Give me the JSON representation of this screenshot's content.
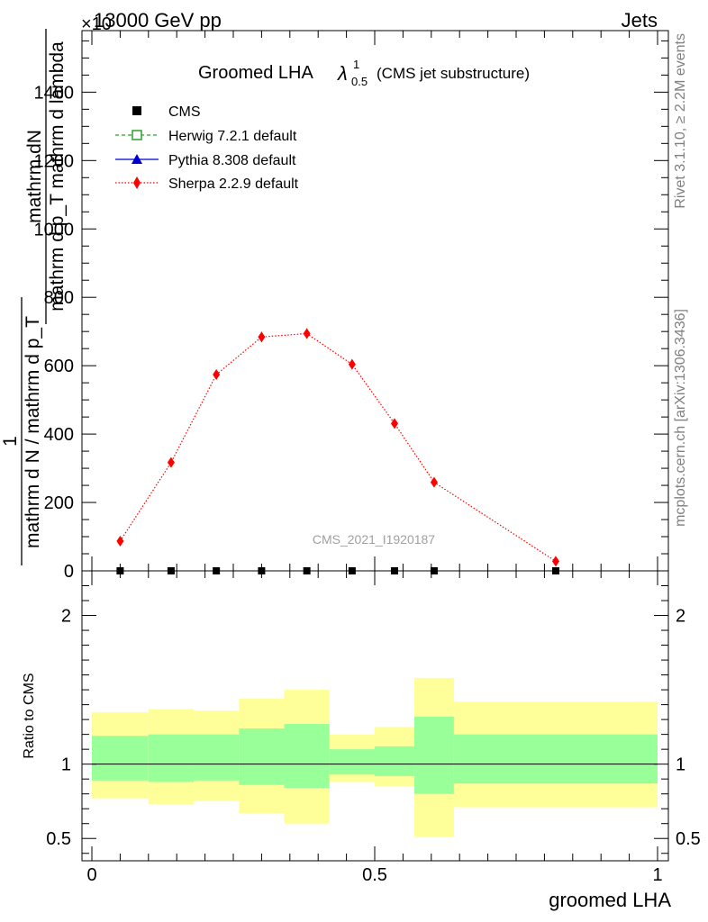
{
  "header": {
    "left": "13000 GeV pp",
    "right": "Jets",
    "multiplier": "×10"
  },
  "side": {
    "rivet": "Rivet 3.1.10, ≥ 2.2M events",
    "mcplots": "mcplots.cern.ch [arXiv:1306.3436]"
  },
  "watermark": "CMS_2021_I1920187",
  "chart_data": [
    {
      "type": "line",
      "title_main": "Groomed LHA",
      "title_symbol": "λ",
      "title_sup": "1",
      "title_sub": "0.5",
      "title_tail": "(CMS jet substructure)",
      "ylabel_numerator": "mathrm dN",
      "ylabel_denominator": "mathrm d p_T mathrm d lambda",
      "ylabel_prefix_num": "1",
      "ylabel_prefix_den": "mathrm d N / mathrm d p_T",
      "ylim": [
        0,
        1580
      ],
      "yticks": [
        0,
        200,
        400,
        600,
        800,
        1000,
        1200,
        1400
      ],
      "xlim": [
        0,
        1
      ],
      "legend_position": "top-left",
      "legend": [
        {
          "label": "CMS",
          "color": "#000000",
          "marker": "square-filled",
          "line": "none"
        },
        {
          "label": "Herwig 7.2.1 default",
          "color": "#2ca02c",
          "marker": "square-open",
          "line": "dashed"
        },
        {
          "label": "Pythia 8.308 default",
          "color": "#0000cc",
          "marker": "triangle",
          "line": "solid"
        },
        {
          "label": "Sherpa 2.2.9 default",
          "color": "#ff0000",
          "marker": "diamond",
          "line": "dotted"
        }
      ],
      "series": [
        {
          "name": "Sherpa 2.2.9 default",
          "color": "#ff0000",
          "x": [
            0.05,
            0.14,
            0.22,
            0.3,
            0.38,
            0.46,
            0.535,
            0.605,
            0.82
          ],
          "y": [
            87,
            317,
            574,
            684,
            694,
            604,
            431,
            259,
            28
          ],
          "err": [
            8,
            10,
            14,
            15,
            15,
            14,
            12,
            9,
            5
          ]
        },
        {
          "name": "CMS",
          "color": "#000000",
          "x": [
            0.05,
            0.14,
            0.22,
            0.3,
            0.38,
            0.46,
            0.535,
            0.605,
            0.82
          ],
          "y": [
            0,
            0,
            0,
            0,
            0,
            0,
            0,
            0,
            0
          ]
        }
      ]
    },
    {
      "type": "area",
      "ylabel": "Ratio to CMS",
      "xlabel": "groomed LHA",
      "xlim": [
        0,
        1
      ],
      "ylim": [
        0.35,
        2.3
      ],
      "yticks": [
        0.5,
        1,
        2
      ],
      "ytick_labels": [
        "0.5",
        "1",
        "2"
      ],
      "xticks": [
        0,
        0.5,
        1
      ],
      "xtick_labels": [
        "0",
        "0.5",
        "1"
      ],
      "bins": [
        {
          "x0": 0.0,
          "x1": 0.1,
          "inner": [
            0.89,
            1.19
          ],
          "outer": [
            0.77,
            1.35
          ]
        },
        {
          "x0": 0.1,
          "x1": 0.18,
          "inner": [
            0.88,
            1.2
          ],
          "outer": [
            0.73,
            1.37
          ]
        },
        {
          "x0": 0.18,
          "x1": 0.26,
          "inner": [
            0.89,
            1.2
          ],
          "outer": [
            0.75,
            1.36
          ]
        },
        {
          "x0": 0.26,
          "x1": 0.34,
          "inner": [
            0.86,
            1.24
          ],
          "outer": [
            0.67,
            1.44
          ]
        },
        {
          "x0": 0.34,
          "x1": 0.42,
          "inner": [
            0.84,
            1.27
          ],
          "outer": [
            0.6,
            1.5
          ]
        },
        {
          "x0": 0.42,
          "x1": 0.5,
          "inner": [
            0.93,
            1.1
          ],
          "outer": [
            0.88,
            1.2
          ]
        },
        {
          "x0": 0.5,
          "x1": 0.57,
          "inner": [
            0.92,
            1.12
          ],
          "outer": [
            0.85,
            1.25
          ]
        },
        {
          "x0": 0.57,
          "x1": 0.64,
          "inner": [
            0.8,
            1.32
          ],
          "outer": [
            0.51,
            1.58
          ]
        },
        {
          "x0": 0.64,
          "x1": 1.0,
          "inner": [
            0.87,
            1.2
          ],
          "outer": [
            0.71,
            1.42
          ]
        }
      ],
      "colors": {
        "outer": "#ffff99",
        "inner": "#99ff99",
        "reference_line": "#000000"
      }
    }
  ]
}
